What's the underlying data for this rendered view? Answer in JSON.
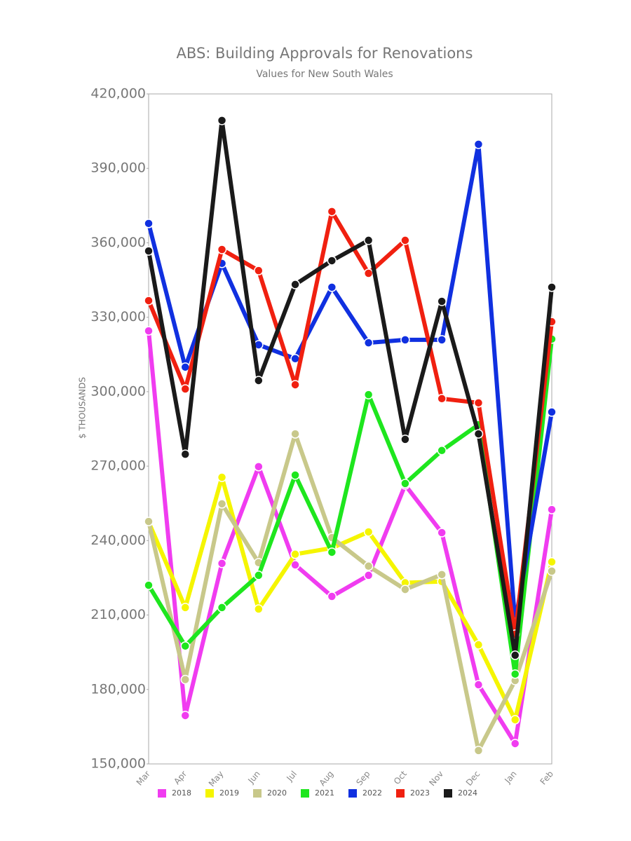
{
  "chart_data": {
    "type": "line",
    "title": "ABS: Building Approvals for Renovations",
    "subtitle": "Values for New South Wales",
    "y_label": "$ THOUSANDS",
    "categories": [
      "Mar",
      "Apr",
      "May",
      "Jun",
      "Jul",
      "Aug",
      "Sep",
      "Oct",
      "Nov",
      "Dec",
      "Jan",
      "Feb"
    ],
    "ylim": [
      150000,
      420000
    ],
    "yticks": [
      {
        "value": 150000,
        "label": "150,000"
      },
      {
        "value": 180000,
        "label": "180,000"
      },
      {
        "value": 210000,
        "label": "210,000"
      },
      {
        "value": 240000,
        "label": "240,000"
      },
      {
        "value": 270000,
        "label": "270,000"
      },
      {
        "value": 300000,
        "label": "300,000"
      },
      {
        "value": 330000,
        "label": "330,000"
      },
      {
        "value": 360000,
        "label": "360,000"
      },
      {
        "value": 390000,
        "label": "390,000"
      },
      {
        "value": 420000,
        "label": "420,000"
      }
    ],
    "grid": false,
    "legend": "bottom",
    "series": [
      {
        "name": "2018",
        "color": "#f03cf0",
        "values": [
          324500,
          169500,
          230800,
          269800,
          230200,
          217500,
          226000,
          262400,
          243200,
          181900,
          158200,
          252500
        ]
      },
      {
        "name": "2019",
        "color": "#f5f500",
        "values": [
          247500,
          213000,
          265500,
          212400,
          234500,
          237000,
          243500,
          223000,
          223500,
          198000,
          167800,
          231400
        ]
      },
      {
        "name": "2020",
        "color": "#c8c88a",
        "values": [
          247700,
          184000,
          254800,
          231100,
          283000,
          241200,
          229700,
          220300,
          226300,
          155400,
          183600,
          227700
        ]
      },
      {
        "name": "2021",
        "color": "#1ee61e",
        "values": [
          222000,
          197500,
          213000,
          226000,
          266400,
          235300,
          298800,
          263000,
          276300,
          286700,
          186200,
          321200
        ]
      },
      {
        "name": "2022",
        "color": "#1030e0",
        "values": [
          367800,
          309900,
          351700,
          318900,
          313300,
          342100,
          319700,
          320900,
          320900,
          399700,
          207000,
          291800
        ]
      },
      {
        "name": "2023",
        "color": "#f02010",
        "values": [
          336700,
          301100,
          357300,
          348800,
          302800,
          372600,
          347700,
          361000,
          297200,
          295500,
          202300,
          328200
        ]
      },
      {
        "name": "2024",
        "color": "#1a1a1a",
        "values": [
          356700,
          274800,
          409300,
          304500,
          343200,
          352800,
          361000,
          280800,
          336400,
          283000,
          193800,
          342100
        ]
      }
    ]
  }
}
